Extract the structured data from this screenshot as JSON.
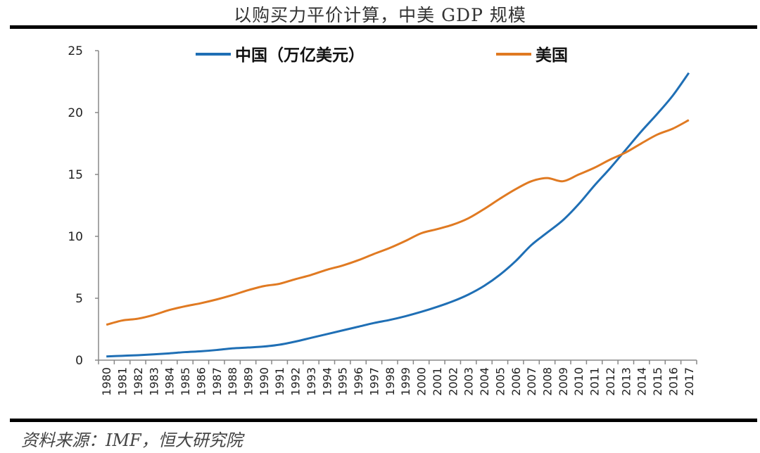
{
  "chart_data": {
    "type": "line",
    "title": "以购买力平价计算，中美 GDP 规模",
    "source": "资料来源：IMF，恒大研究院",
    "x": [
      1980,
      1981,
      1982,
      1983,
      1984,
      1985,
      1986,
      1987,
      1988,
      1989,
      1990,
      1991,
      1992,
      1993,
      1994,
      1995,
      1996,
      1997,
      1998,
      1999,
      2000,
      2001,
      2002,
      2003,
      2004,
      2005,
      2006,
      2007,
      2008,
      2009,
      2010,
      2011,
      2012,
      2013,
      2014,
      2015,
      2016,
      2017
    ],
    "ylim": [
      0,
      25
    ],
    "yticks": [
      0,
      5,
      10,
      15,
      20,
      25
    ],
    "grid": false,
    "legend": "top",
    "series": [
      {
        "name": "中国（万亿美元）",
        "color": "#1f6fb5",
        "values": [
          0.3,
          0.35,
          0.4,
          0.47,
          0.55,
          0.65,
          0.72,
          0.82,
          0.95,
          1.02,
          1.1,
          1.25,
          1.5,
          1.8,
          2.1,
          2.4,
          2.7,
          3.0,
          3.25,
          3.55,
          3.9,
          4.3,
          4.75,
          5.3,
          6.0,
          6.9,
          8.0,
          9.3,
          10.3,
          11.3,
          12.6,
          14.1,
          15.5,
          17.0,
          18.5,
          19.9,
          21.4,
          23.2
        ]
      },
      {
        "name": "美国",
        "color": "#e07a22",
        "values": [
          2.86,
          3.2,
          3.35,
          3.65,
          4.05,
          4.35,
          4.6,
          4.9,
          5.25,
          5.65,
          5.98,
          6.17,
          6.54,
          6.88,
          7.3,
          7.64,
          8.07,
          8.58,
          9.06,
          9.63,
          10.25,
          10.58,
          10.94,
          11.46,
          12.21,
          13.04,
          13.81,
          14.45,
          14.71,
          14.45,
          14.99,
          15.54,
          16.2,
          16.78,
          17.52,
          18.22,
          18.71,
          19.39
        ]
      }
    ]
  }
}
